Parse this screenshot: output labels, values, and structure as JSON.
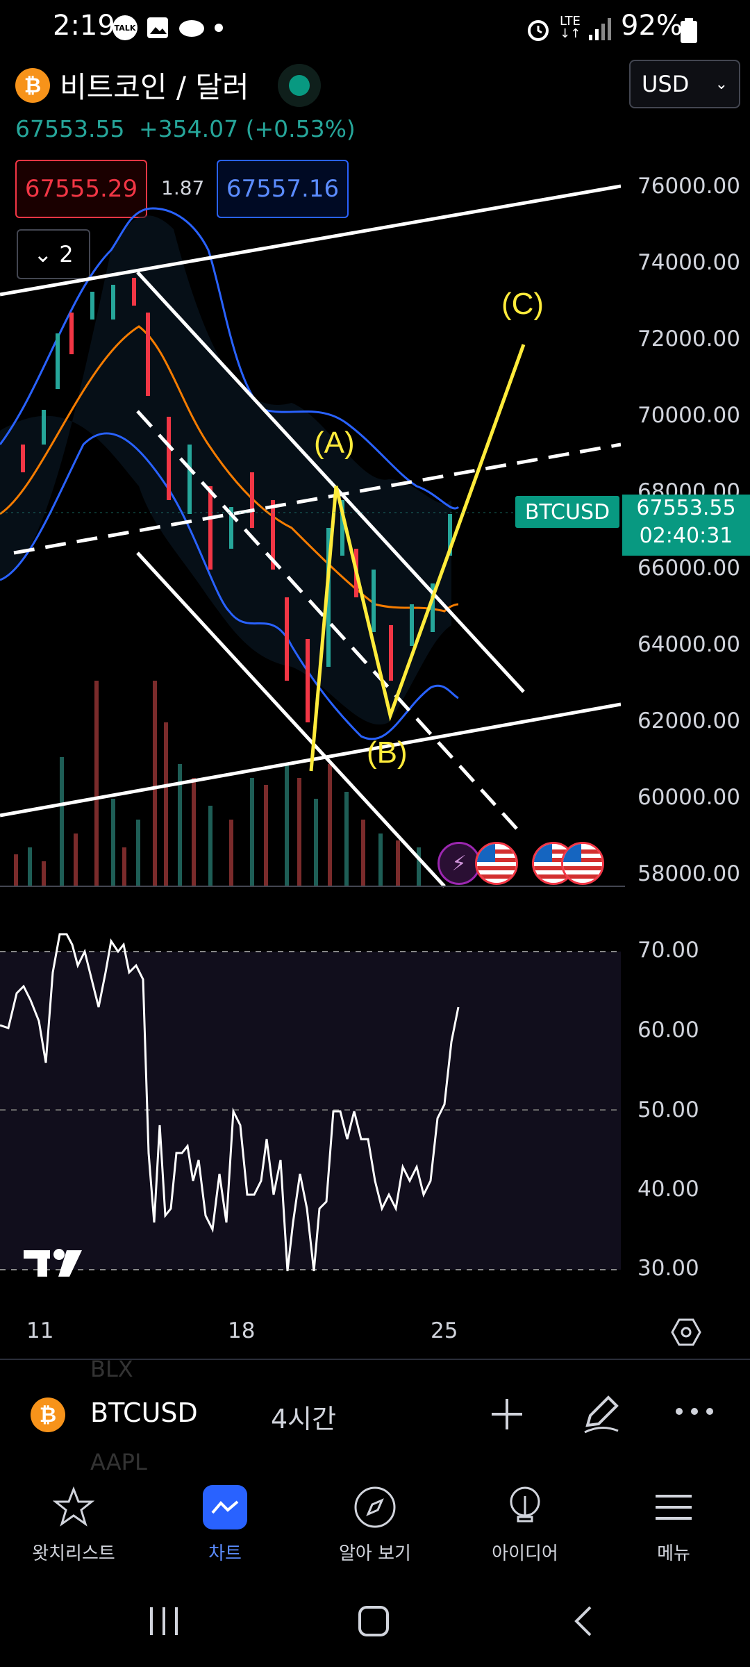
{
  "status": {
    "time": "2:19",
    "battery": "92%",
    "notif_icons": [
      "talk-icon",
      "image-icon",
      "cloud-icon",
      "dot-icon"
    ],
    "right_icons": [
      "alarm-icon",
      "lte-icon",
      "signal-icon",
      "battery-icon"
    ],
    "lte": "LTE"
  },
  "header": {
    "title": "비트코인 / 달러",
    "currency": "USD",
    "price": "67553.55",
    "change": "+354.07 (+0.53%)",
    "bid": "67555.29",
    "spread": "1.87",
    "ask": "67557.16",
    "indicators_count": "2"
  },
  "colors": {
    "up": "#26a69a",
    "down": "#f23645",
    "ask": "#2962ff",
    "annotation": "#ffeb3b",
    "trendline": "#ffffff",
    "accent": "#2962ff"
  },
  "chart": {
    "price_ticks": [
      "76000.00",
      "74000.00",
      "72000.00",
      "70000.00",
      "68000.00",
      "66000.00",
      "64000.00",
      "62000.00",
      "60000.00",
      "58000.00"
    ],
    "rsi_ticks": [
      "70.00",
      "60.00",
      "50.00",
      "40.00",
      "30.00"
    ],
    "x_ticks": [
      "11",
      "18",
      "25"
    ],
    "symbol_tag": "BTCUSD",
    "last_price": "67553.55",
    "countdown": "02:40:31",
    "wave_labels": [
      "(A)",
      "(B)",
      "(C)"
    ]
  },
  "chart_data": {
    "type": "candlestick",
    "symbol": "BTCUSD",
    "interval": "4시간",
    "x_ticks": [
      "11",
      "18",
      "25"
    ],
    "ylim": [
      58000,
      76000
    ],
    "rsi_ylim": [
      30,
      70
    ],
    "annotations": [
      {
        "label": "(A)",
        "price": 68200
      },
      {
        "label": "(B)",
        "price": 62300
      },
      {
        "label": "(C)",
        "price": 72000
      }
    ],
    "last_price": 67553.55,
    "bid": 67555.29,
    "ask": 67557.16
  },
  "bottombar": {
    "symbol": "BTCUSD",
    "interval": "4시간",
    "ghost_above": "BLX",
    "ghost_below": "AAPL"
  },
  "nav": {
    "items": [
      {
        "label": "왓치리스트",
        "icon": "star-icon"
      },
      {
        "label": "차트",
        "icon": "chart-icon"
      },
      {
        "label": "알아 보기",
        "icon": "compass-icon"
      },
      {
        "label": "아이디어",
        "icon": "lightbulb-icon"
      },
      {
        "label": "메뉴",
        "icon": "menu-icon"
      }
    ]
  }
}
